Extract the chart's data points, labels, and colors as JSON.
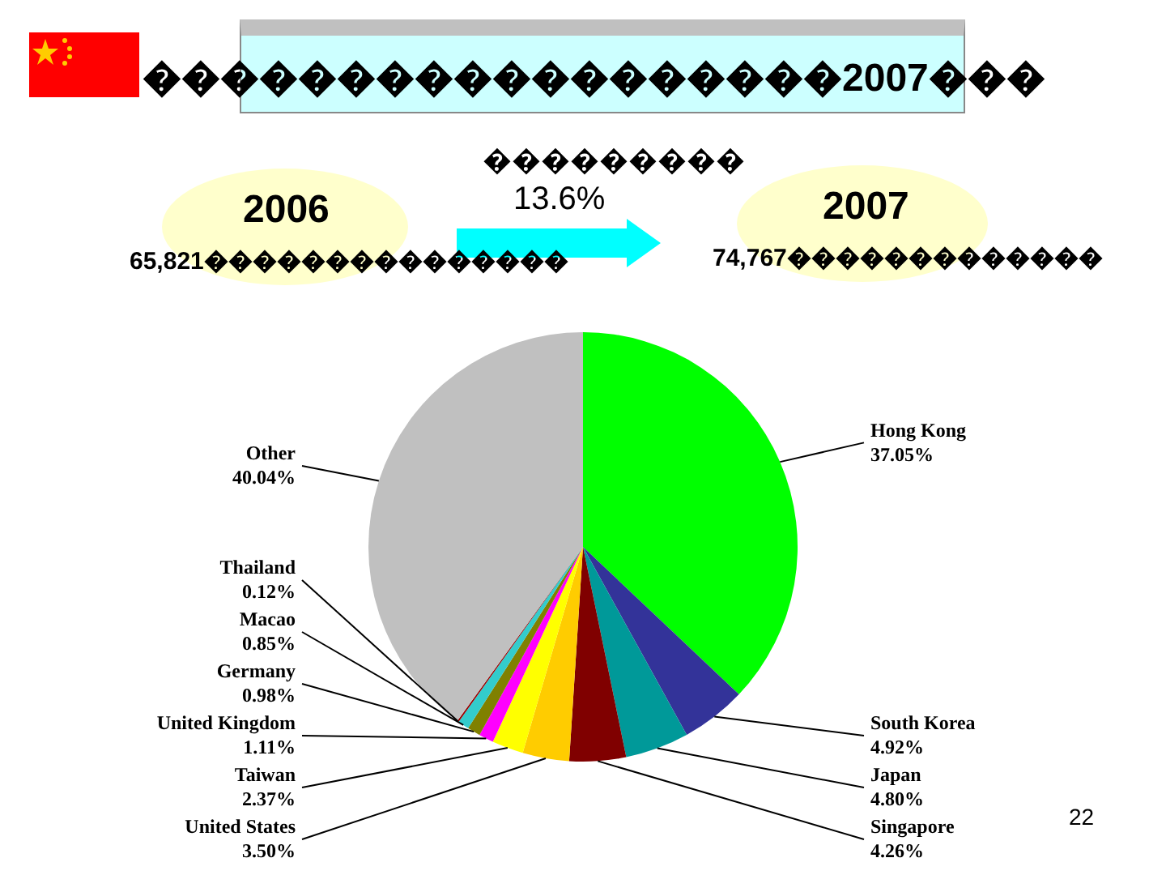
{
  "chart_data": {
    "type": "pie",
    "title": "������������������2007���",
    "annotations": [
      "���������",
      "13.6%",
      "2006",
      "65,821���������������",
      "2007",
      "74,767�������������",
      "22"
    ],
    "categories": [
      "Hong Kong",
      "South Korea",
      "Japan",
      "Singapore",
      "United States",
      "Taiwan",
      "United Kingdom",
      "Germany",
      "Macao",
      "Thailand",
      "Other"
    ],
    "values": [
      37.05,
      4.92,
      4.8,
      4.26,
      3.5,
      2.37,
      1.11,
      0.98,
      0.85,
      0.12,
      40.04
    ],
    "value_labels": [
      "37.05%",
      "4.92%",
      "4.80%",
      "4.26%",
      "3.50%",
      "2.37%",
      "1.11%",
      "0.98%",
      "0.85%",
      "0.12%",
      "40.04%"
    ],
    "colors": [
      "#00ff00",
      "#333399",
      "#009999",
      "#800000",
      "#ffcc00",
      "#ffff00",
      "#ff00ff",
      "#808000",
      "#33cccc",
      "#990000",
      "#c0c0c0"
    ],
    "legend": false
  }
}
